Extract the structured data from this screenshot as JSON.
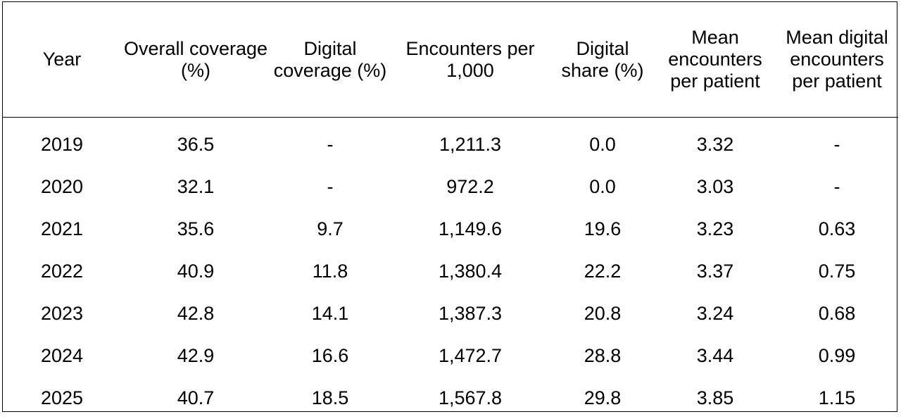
{
  "table": {
    "headers": [
      "Year",
      "Overall coverage (%)",
      "Digital coverage (%)",
      "Encounters per 1,000",
      "Digital share (%)",
      "Mean encounters per patient",
      "Mean digital encounters per patient"
    ],
    "rows": [
      [
        "2019",
        "36.5",
        "-",
        "1,211.3",
        "0.0",
        "3.32",
        "-"
      ],
      [
        "2020",
        "32.1",
        "-",
        "972.2",
        "0.0",
        "3.03",
        "-"
      ],
      [
        "2021",
        "35.6",
        "9.7",
        "1,149.6",
        "19.6",
        "3.23",
        "0.63"
      ],
      [
        "2022",
        "40.9",
        "11.8",
        "1,380.4",
        "22.2",
        "3.37",
        "0.75"
      ],
      [
        "2023",
        "42.8",
        "14.1",
        "1,387.3",
        "20.8",
        "3.24",
        "0.68"
      ],
      [
        "2024",
        "42.9",
        "16.6",
        "1,472.7",
        "28.8",
        "3.44",
        "0.99"
      ],
      [
        "2025",
        "40.7",
        "18.5",
        "1,567.8",
        "29.8",
        "3.85",
        "1.15"
      ]
    ]
  }
}
